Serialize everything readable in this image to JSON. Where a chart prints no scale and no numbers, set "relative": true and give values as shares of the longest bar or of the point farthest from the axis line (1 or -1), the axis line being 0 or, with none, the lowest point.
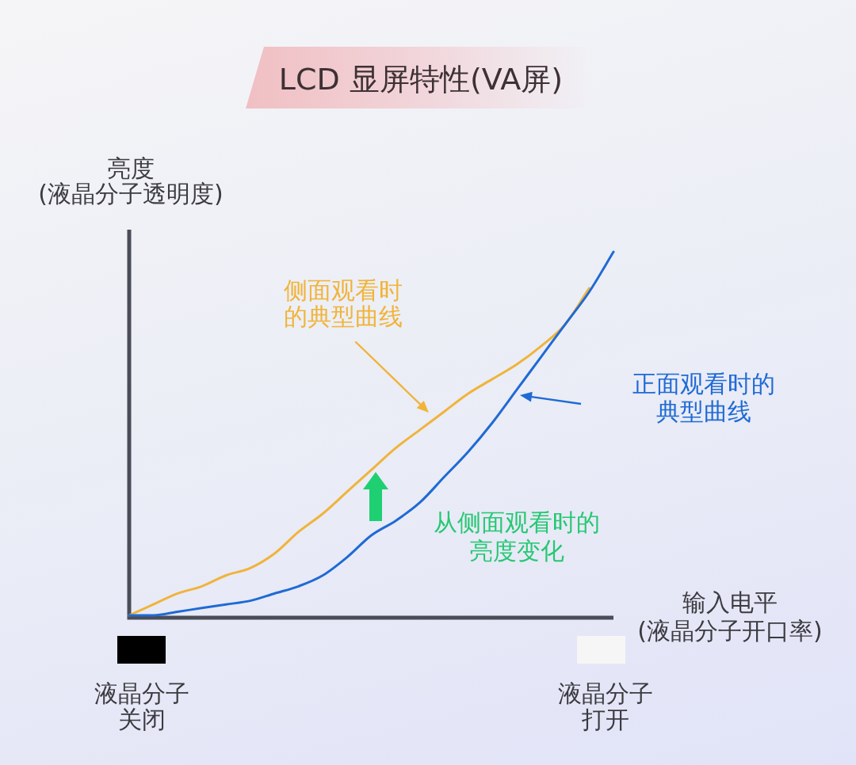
{
  "chart_data": {
    "type": "line",
    "title": "LCD 显屏特性(VA屏)",
    "xlabel": "输入电平\n(液晶分子开口率)",
    "ylabel": "亮度\n(液晶分子透明度)",
    "relative": true,
    "marker": "none",
    "categories": [
      null,
      null,
      null,
      null,
      null,
      null,
      null,
      null,
      null,
      null,
      null,
      null,
      null,
      null,
      null,
      null,
      null,
      null,
      null,
      null,
      null
    ],
    "series": [
      {
        "name": "正面观看时的典型曲线",
        "color": "#1f6ad4",
        "values": [
          0,
          0,
          0.01,
          0.02,
          0.03,
          0.04,
          0.06,
          0.08,
          0.11,
          0.16,
          0.22,
          0.26,
          0.31,
          0.38,
          0.45,
          0.53,
          0.62,
          0.71,
          0.8,
          0.89,
          1
        ]
      },
      {
        "name": "侧面观看时的典型曲线",
        "color": "#f0b43a",
        "values": [
          0,
          0.03,
          0.06,
          0.08,
          0.11,
          0.13,
          0.17,
          0.23,
          0.28,
          0.34,
          0.4,
          0.46,
          0.51,
          0.56,
          0.61,
          0.65,
          0.69,
          0.74,
          0.8,
          0.9,
          null
        ]
      }
    ],
    "annotations": [
      "从侧面观看时的亮度变化",
      "液晶分子关闭",
      "液晶分子打开"
    ]
  }
}
